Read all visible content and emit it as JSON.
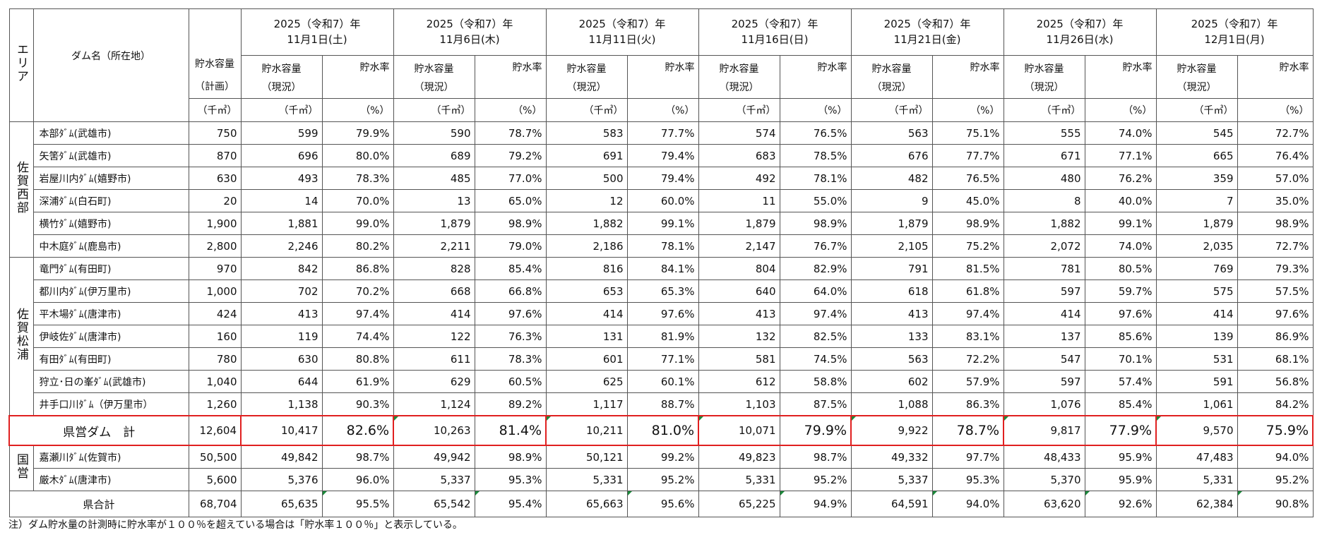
{
  "header": {
    "area_label": "エリア",
    "dam_label": "ダム名（所在地）",
    "capacity_plan_label": "貯水容量",
    "capacity_plan_sub": "（計画）",
    "capacity_plan_unit": "（千㎥）",
    "current_label": "貯水容量",
    "current_sub": "（現況）",
    "current_unit": "（千㎥）",
    "rate_label": "貯水率",
    "rate_unit": "（%）",
    "dates": [
      {
        "line1": "2025（令和7）年",
        "line2": "11月1日(土)"
      },
      {
        "line1": "2025（令和7）年",
        "line2": "11月6日(木)"
      },
      {
        "line1": "2025（令和7）年",
        "line2": "11月11日(火)"
      },
      {
        "line1": "2025（令和7）年",
        "line2": "11月16日(日)"
      },
      {
        "line1": "2025（令和7）年",
        "line2": "11月21日(金)"
      },
      {
        "line1": "2025（令和7）年",
        "line2": "11月26日(水)"
      },
      {
        "line1": "2025（令和7）年",
        "line2": "12月1日(月)"
      }
    ]
  },
  "areas": {
    "saga_west": "佐賀西部",
    "saga_matsuura": "佐賀松浦",
    "national": "国営"
  },
  "rows": [
    {
      "name": "本部ﾀﾞﾑ(武雄市)",
      "plan": "750",
      "vals": [
        [
          "599",
          "79.9%"
        ],
        [
          "590",
          "78.7%"
        ],
        [
          "583",
          "77.7%"
        ],
        [
          "574",
          "76.5%"
        ],
        [
          "563",
          "75.1%"
        ],
        [
          "555",
          "74.0%"
        ],
        [
          "545",
          "72.7%"
        ]
      ]
    },
    {
      "name": "矢筈ﾀﾞﾑ(武雄市)",
      "plan": "870",
      "vals": [
        [
          "696",
          "80.0%"
        ],
        [
          "689",
          "79.2%"
        ],
        [
          "691",
          "79.4%"
        ],
        [
          "683",
          "78.5%"
        ],
        [
          "676",
          "77.7%"
        ],
        [
          "671",
          "77.1%"
        ],
        [
          "665",
          "76.4%"
        ]
      ]
    },
    {
      "name": "岩屋川内ﾀﾞﾑ(嬉野市)",
      "plan": "630",
      "vals": [
        [
          "493",
          "78.3%"
        ],
        [
          "485",
          "77.0%"
        ],
        [
          "500",
          "79.4%"
        ],
        [
          "492",
          "78.1%"
        ],
        [
          "482",
          "76.5%"
        ],
        [
          "480",
          "76.2%"
        ],
        [
          "359",
          "57.0%"
        ]
      ]
    },
    {
      "name": "深浦ﾀﾞﾑ(白石町)",
      "plan": "20",
      "vals": [
        [
          "14",
          "70.0%"
        ],
        [
          "13",
          "65.0%"
        ],
        [
          "12",
          "60.0%"
        ],
        [
          "11",
          "55.0%"
        ],
        [
          "9",
          "45.0%"
        ],
        [
          "8",
          "40.0%"
        ],
        [
          "7",
          "35.0%"
        ]
      ]
    },
    {
      "name": "横竹ﾀﾞﾑ(嬉野市)",
      "plan": "1,900",
      "vals": [
        [
          "1,881",
          "99.0%"
        ],
        [
          "1,879",
          "98.9%"
        ],
        [
          "1,882",
          "99.1%"
        ],
        [
          "1,879",
          "98.9%"
        ],
        [
          "1,879",
          "98.9%"
        ],
        [
          "1,882",
          "99.1%"
        ],
        [
          "1,879",
          "98.9%"
        ]
      ]
    },
    {
      "name": "中木庭ﾀﾞﾑ(鹿島市)",
      "plan": "2,800",
      "vals": [
        [
          "2,246",
          "80.2%"
        ],
        [
          "2,211",
          "79.0%"
        ],
        [
          "2,186",
          "78.1%"
        ],
        [
          "2,147",
          "76.7%"
        ],
        [
          "2,105",
          "75.2%"
        ],
        [
          "2,072",
          "74.0%"
        ],
        [
          "2,035",
          "72.7%"
        ]
      ]
    },
    {
      "name": "竜門ﾀﾞﾑ(有田町)",
      "plan": "970",
      "vals": [
        [
          "842",
          "86.8%"
        ],
        [
          "828",
          "85.4%"
        ],
        [
          "816",
          "84.1%"
        ],
        [
          "804",
          "82.9%"
        ],
        [
          "791",
          "81.5%"
        ],
        [
          "781",
          "80.5%"
        ],
        [
          "769",
          "79.3%"
        ]
      ]
    },
    {
      "name": "都川内ﾀﾞﾑ(伊万里市)",
      "plan": "1,000",
      "vals": [
        [
          "702",
          "70.2%"
        ],
        [
          "668",
          "66.8%"
        ],
        [
          "653",
          "65.3%"
        ],
        [
          "640",
          "64.0%"
        ],
        [
          "618",
          "61.8%"
        ],
        [
          "597",
          "59.7%"
        ],
        [
          "575",
          "57.5%"
        ]
      ]
    },
    {
      "name": "平木場ﾀﾞﾑ(唐津市)",
      "plan": "424",
      "vals": [
        [
          "413",
          "97.4%"
        ],
        [
          "414",
          "97.6%"
        ],
        [
          "414",
          "97.6%"
        ],
        [
          "413",
          "97.4%"
        ],
        [
          "413",
          "97.4%"
        ],
        [
          "414",
          "97.6%"
        ],
        [
          "414",
          "97.6%"
        ]
      ]
    },
    {
      "name": "伊岐佐ﾀﾞﾑ(唐津市)",
      "plan": "160",
      "vals": [
        [
          "119",
          "74.4%"
        ],
        [
          "122",
          "76.3%"
        ],
        [
          "131",
          "81.9%"
        ],
        [
          "132",
          "82.5%"
        ],
        [
          "133",
          "83.1%"
        ],
        [
          "137",
          "85.6%"
        ],
        [
          "139",
          "86.9%"
        ]
      ]
    },
    {
      "name": "有田ﾀﾞﾑ(有田町)",
      "plan": "780",
      "vals": [
        [
          "630",
          "80.8%"
        ],
        [
          "611",
          "78.3%"
        ],
        [
          "601",
          "77.1%"
        ],
        [
          "581",
          "74.5%"
        ],
        [
          "563",
          "72.2%"
        ],
        [
          "547",
          "70.1%"
        ],
        [
          "531",
          "68.1%"
        ]
      ]
    },
    {
      "name": "狩立･日の峯ﾀﾞﾑ(武雄市)",
      "plan": "1,040",
      "vals": [
        [
          "644",
          "61.9%"
        ],
        [
          "629",
          "60.5%"
        ],
        [
          "625",
          "60.1%"
        ],
        [
          "612",
          "58.8%"
        ],
        [
          "602",
          "57.9%"
        ],
        [
          "597",
          "57.4%"
        ],
        [
          "591",
          "56.8%"
        ]
      ]
    },
    {
      "name": "井手口川ﾀﾞﾑ（伊万里市）",
      "plan": "1,260",
      "vals": [
        [
          "1,138",
          "90.3%"
        ],
        [
          "1,124",
          "89.2%"
        ],
        [
          "1,117",
          "88.7%"
        ],
        [
          "1,103",
          "87.5%"
        ],
        [
          "1,088",
          "86.3%"
        ],
        [
          "1,076",
          "85.4%"
        ],
        [
          "1,061",
          "84.2%"
        ]
      ]
    }
  ],
  "kenei_total": {
    "label": "県営ダム　計",
    "plan": "12,604",
    "vals": [
      [
        "10,417",
        "82.6%"
      ],
      [
        "10,263",
        "81.4%"
      ],
      [
        "10,211",
        "81.0%"
      ],
      [
        "10,071",
        "79.9%"
      ],
      [
        "9,922",
        "78.7%"
      ],
      [
        "9,817",
        "77.9%"
      ],
      [
        "9,570",
        "75.9%"
      ]
    ]
  },
  "national_rows": [
    {
      "name": "嘉瀬川ﾀﾞﾑ(佐賀市)",
      "plan": "50,500",
      "vals": [
        [
          "49,842",
          "98.7%"
        ],
        [
          "49,942",
          "98.9%"
        ],
        [
          "50,121",
          "99.2%"
        ],
        [
          "49,823",
          "98.7%"
        ],
        [
          "49,332",
          "97.7%"
        ],
        [
          "48,433",
          "95.9%"
        ],
        [
          "47,483",
          "94.0%"
        ]
      ]
    },
    {
      "name": "厳木ﾀﾞﾑ(唐津市)",
      "plan": "5,600",
      "vals": [
        [
          "5,376",
          "96.0%"
        ],
        [
          "5,337",
          "95.3%"
        ],
        [
          "5,331",
          "95.2%"
        ],
        [
          "5,331",
          "95.2%"
        ],
        [
          "5,337",
          "95.3%"
        ],
        [
          "5,370",
          "95.9%"
        ],
        [
          "5,331",
          "95.2%"
        ]
      ]
    }
  ],
  "pref_total": {
    "label": "県合計",
    "plan": "68,704",
    "vals": [
      [
        "65,635",
        "95.5%"
      ],
      [
        "65,542",
        "95.4%"
      ],
      [
        "65,663",
        "95.6%"
      ],
      [
        "65,225",
        "94.9%"
      ],
      [
        "64,591",
        "94.0%"
      ],
      [
        "63,620",
        "92.6%"
      ],
      [
        "62,384",
        "90.8%"
      ]
    ]
  },
  "footnote": "注）ダム貯水量の計測時に貯水率が１００％を超えている場合は「貯水率１００％」と表示している。",
  "colors": {
    "highlight_border": "#e02020",
    "marker": "#1a8a3a"
  }
}
